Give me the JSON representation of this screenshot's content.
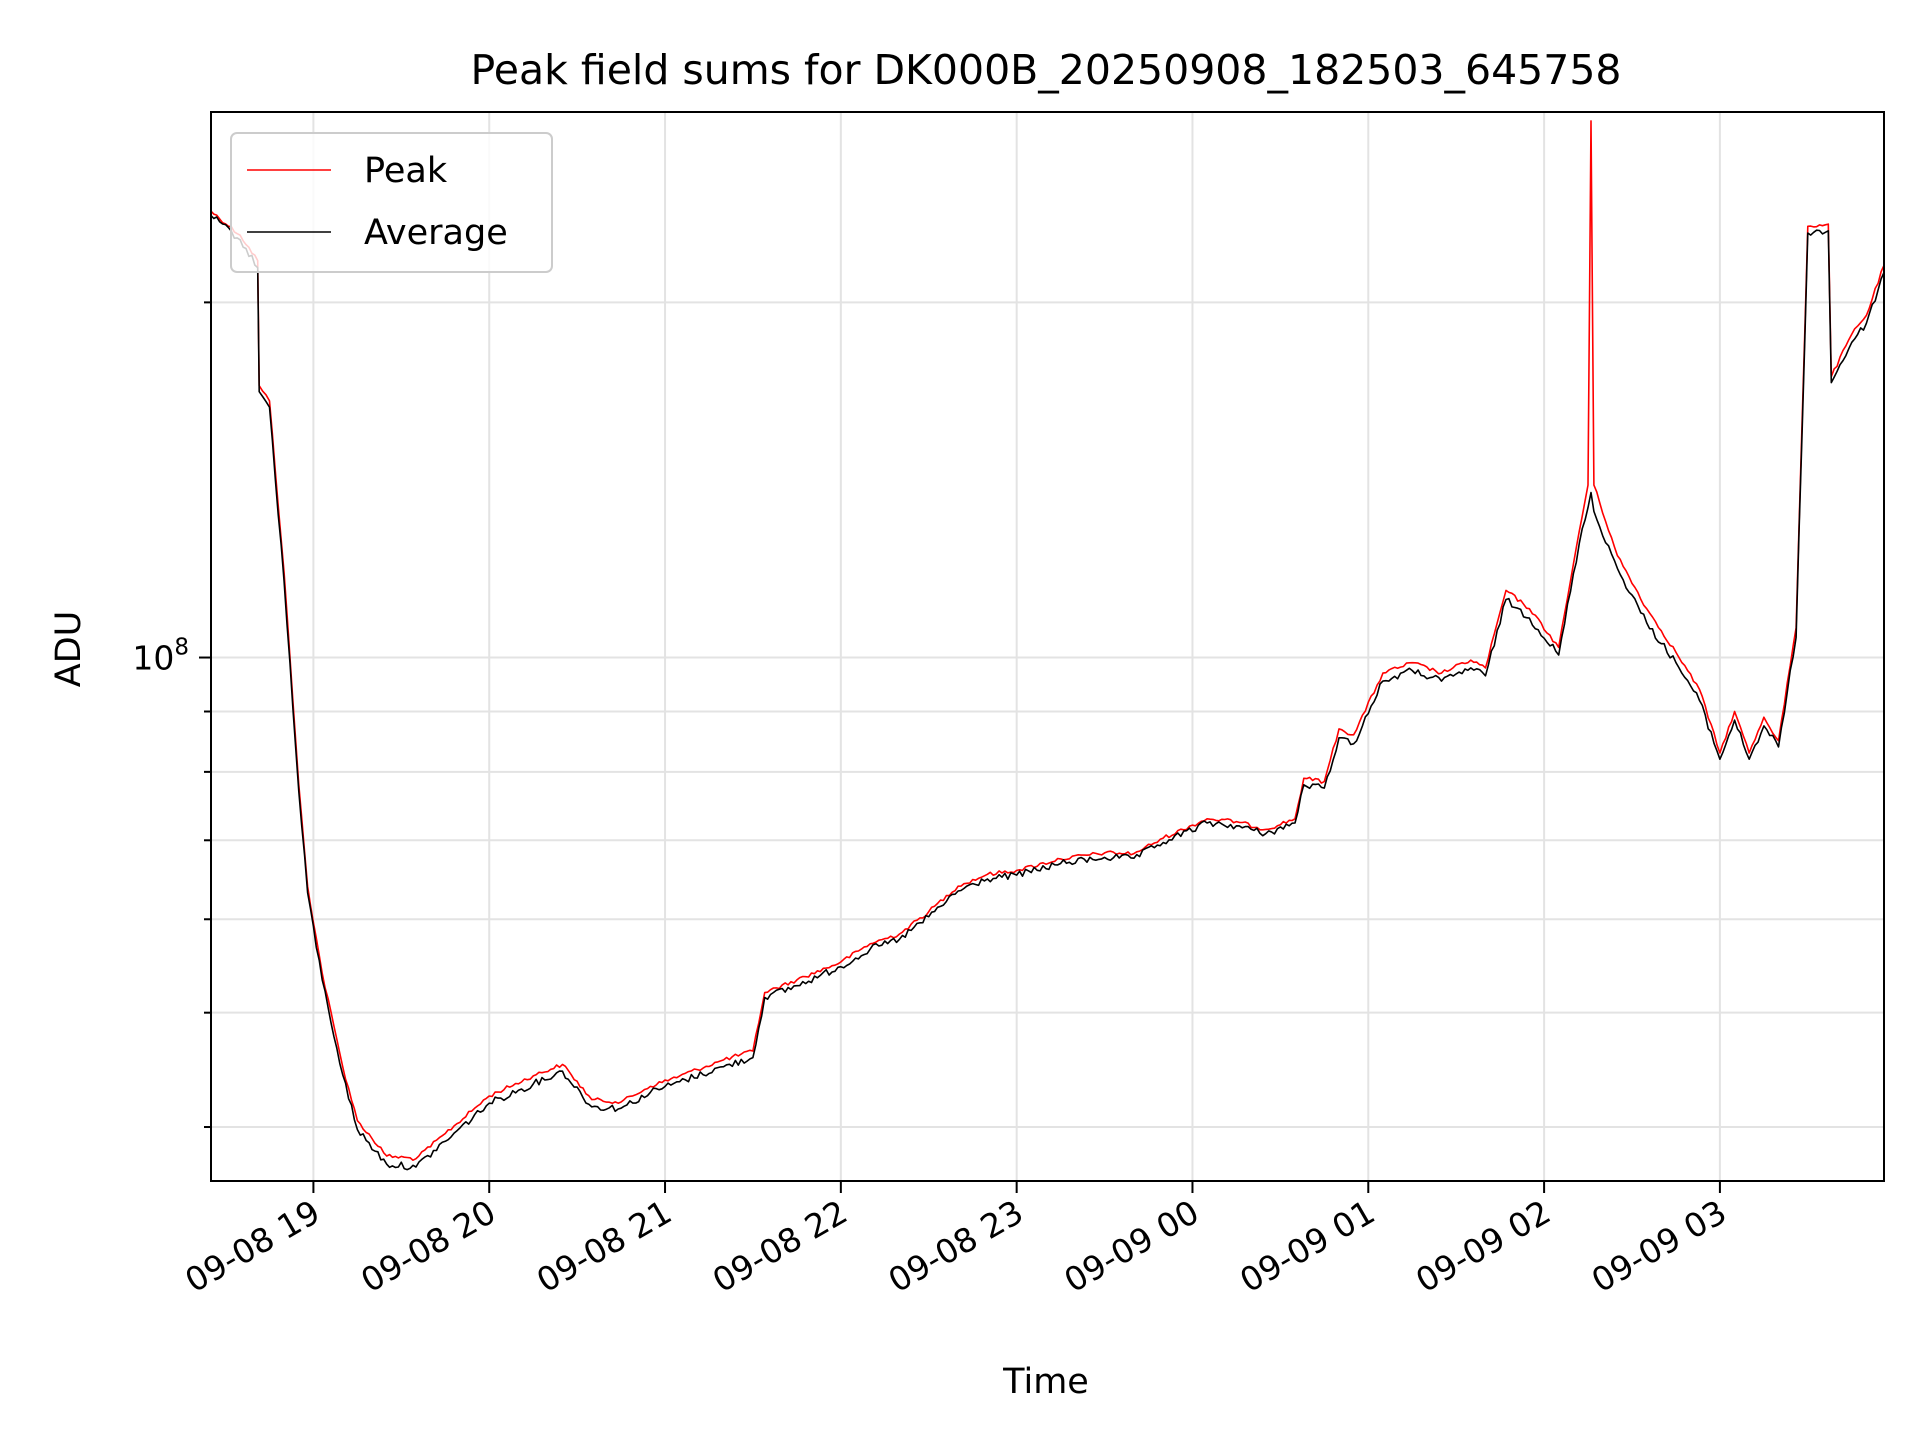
{
  "chart_data": {
    "type": "line",
    "title": "Peak field sums for DK000B_20250908_182503_645758",
    "xlabel": "Time",
    "ylabel": "ADU",
    "y_scale": "log",
    "y_tick_label": {
      "base": "10",
      "exponent": "8",
      "value": 100000000
    },
    "xlim": [
      "2025-09-08 18:25:03",
      "2025-09-09 03:56:00"
    ],
    "ylim": [
      36000000,
      290000000
    ],
    "x_ticks": [
      {
        "label": "09-08 19",
        "time": "2025-09-08 19:00"
      },
      {
        "label": "09-08 20",
        "time": "2025-09-08 20:00"
      },
      {
        "label": "09-08 21",
        "time": "2025-09-08 21:00"
      },
      {
        "label": "09-08 22",
        "time": "2025-09-08 22:00"
      },
      {
        "label": "09-08 23",
        "time": "2025-09-08 23:00"
      },
      {
        "label": "09-09 00",
        "time": "2025-09-09 00:00"
      },
      {
        "label": "09-09 01",
        "time": "2025-09-09 01:00"
      },
      {
        "label": "09-09 02",
        "time": "2025-09-09 02:00"
      },
      {
        "label": "09-09 03",
        "time": "2025-09-09 03:00"
      }
    ],
    "grid": true,
    "legend_position": "top-left",
    "series": [
      {
        "name": "Peak",
        "color": "#ff0000",
        "points": [
          [
            "2025-09-08 18:25",
            239000000
          ],
          [
            "2025-09-08 18:35",
            228000000
          ],
          [
            "2025-09-08 18:41",
            217000000
          ],
          [
            "2025-09-08 18:41:30",
            170000000
          ],
          [
            "2025-09-08 18:45",
            165000000
          ],
          [
            "2025-09-08 18:50",
            118000000
          ],
          [
            "2025-09-08 18:55",
            78000000
          ],
          [
            "2025-09-08 18:58",
            64000000
          ],
          [
            "2025-09-08 19:03",
            54000000
          ],
          [
            "2025-09-08 19:10",
            45000000
          ],
          [
            "2025-09-08 19:15",
            40500000
          ],
          [
            "2025-09-08 19:25",
            37800000
          ],
          [
            "2025-09-08 19:35",
            37600000
          ],
          [
            "2025-09-08 19:45",
            39500000
          ],
          [
            "2025-09-08 20:00",
            42500000
          ],
          [
            "2025-09-08 20:15",
            44200000
          ],
          [
            "2025-09-08 20:25",
            45200000
          ],
          [
            "2025-09-08 20:35",
            42200000
          ],
          [
            "2025-09-08 20:45",
            42000000
          ],
          [
            "2025-09-08 20:55",
            43300000
          ],
          [
            "2025-09-08 21:05",
            44200000
          ],
          [
            "2025-09-08 21:20",
            45600000
          ],
          [
            "2025-09-08 21:30",
            46400000
          ],
          [
            "2025-09-08 21:34",
            52000000
          ],
          [
            "2025-09-08 21:45",
            53300000
          ],
          [
            "2025-09-08 22:00",
            55200000
          ],
          [
            "2025-09-08 22:10",
            57200000
          ],
          [
            "2025-09-08 22:20",
            58300000
          ],
          [
            "2025-09-08 22:30",
            60900000
          ],
          [
            "2025-09-08 22:40",
            64000000
          ],
          [
            "2025-09-08 22:50",
            65500000
          ],
          [
            "2025-09-08 23:00",
            66000000
          ],
          [
            "2025-09-08 23:15",
            67500000
          ],
          [
            "2025-09-08 23:30",
            68300000
          ],
          [
            "2025-09-08 23:40",
            68200000
          ],
          [
            "2025-09-08 23:50",
            70300000
          ],
          [
            "2025-09-09 00:05",
            73000000
          ],
          [
            "2025-09-09 00:15",
            72600000
          ],
          [
            "2025-09-09 00:25",
            71500000
          ],
          [
            "2025-09-09 00:35",
            73000000
          ],
          [
            "2025-09-09 00:38",
            79000000
          ],
          [
            "2025-09-09 00:45",
            78500000
          ],
          [
            "2025-09-09 00:50",
            87000000
          ],
          [
            "2025-09-09 00:55",
            86000000
          ],
          [
            "2025-09-09 01:05",
            97000000
          ],
          [
            "2025-09-09 01:15",
            99000000
          ],
          [
            "2025-09-09 01:25",
            97000000
          ],
          [
            "2025-09-09 01:35",
            99500000
          ],
          [
            "2025-09-09 01:40",
            98000000
          ],
          [
            "2025-09-09 01:47",
            114000000
          ],
          [
            "2025-09-09 01:55",
            110000000
          ],
          [
            "2025-09-09 02:05",
            102000000
          ],
          [
            "2025-09-09 02:12",
            128000000
          ],
          [
            "2025-09-09 02:15",
            140000000
          ],
          [
            "2025-09-09 02:16",
            285000000
          ],
          [
            "2025-09-09 02:17",
            140000000
          ],
          [
            "2025-09-09 02:25",
            122000000
          ],
          [
            "2025-09-09 02:35",
            110000000
          ],
          [
            "2025-09-09 02:45",
            101000000
          ],
          [
            "2025-09-09 02:53",
            94000000
          ],
          [
            "2025-09-09 03:00",
            83000000
          ],
          [
            "2025-09-09 03:05",
            90000000
          ],
          [
            "2025-09-09 03:10",
            83000000
          ],
          [
            "2025-09-09 03:15",
            89000000
          ],
          [
            "2025-09-09 03:20",
            85000000
          ],
          [
            "2025-09-09 03:26",
            106000000
          ],
          [
            "2025-09-09 03:30",
            232000000
          ],
          [
            "2025-09-09 03:37",
            233000000
          ],
          [
            "2025-09-09 03:38",
            173000000
          ],
          [
            "2025-09-09 03:45",
            188000000
          ],
          [
            "2025-09-09 03:50",
            195000000
          ],
          [
            "2025-09-09 03:56",
            215000000
          ]
        ]
      },
      {
        "name": "Average",
        "color": "#000000",
        "points": [
          [
            "2025-09-08 18:25",
            237000000
          ],
          [
            "2025-09-08 18:35",
            226000000
          ],
          [
            "2025-09-08 18:41",
            214000000
          ],
          [
            "2025-09-08 18:41:30",
            168000000
          ],
          [
            "2025-09-08 18:45",
            163000000
          ],
          [
            "2025-09-08 18:50",
            116000000
          ],
          [
            "2025-09-08 18:55",
            77000000
          ],
          [
            "2025-09-08 18:58",
            63200000
          ],
          [
            "2025-09-08 19:03",
            53300000
          ],
          [
            "2025-09-08 19:10",
            44300000
          ],
          [
            "2025-09-08 19:15",
            39800000
          ],
          [
            "2025-09-08 19:25",
            37200000
          ],
          [
            "2025-09-08 19:35",
            37000000
          ],
          [
            "2025-09-08 19:45",
            38900000
          ],
          [
            "2025-09-08 20:00",
            41900000
          ],
          [
            "2025-09-08 20:15",
            43500000
          ],
          [
            "2025-09-08 20:25",
            44600000
          ],
          [
            "2025-09-08 20:35",
            41600000
          ],
          [
            "2025-09-08 20:45",
            41500000
          ],
          [
            "2025-09-08 20:55",
            42800000
          ],
          [
            "2025-09-08 21:05",
            43700000
          ],
          [
            "2025-09-08 21:20",
            45000000
          ],
          [
            "2025-09-08 21:30",
            45800000
          ],
          [
            "2025-09-08 21:34",
            51500000
          ],
          [
            "2025-09-08 21:45",
            52700000
          ],
          [
            "2025-09-08 22:00",
            54700000
          ],
          [
            "2025-09-08 22:10",
            56600000
          ],
          [
            "2025-09-08 22:20",
            57700000
          ],
          [
            "2025-09-08 22:30",
            60300000
          ],
          [
            "2025-09-08 22:40",
            63400000
          ],
          [
            "2025-09-08 22:50",
            64900000
          ],
          [
            "2025-09-08 23:00",
            65400000
          ],
          [
            "2025-09-08 23:15",
            66900000
          ],
          [
            "2025-09-08 23:30",
            67700000
          ],
          [
            "2025-09-08 23:40",
            67600000
          ],
          [
            "2025-09-08 23:50",
            69700000
          ],
          [
            "2025-09-09 00:05",
            72400000
          ],
          [
            "2025-09-09 00:15",
            72000000
          ],
          [
            "2025-09-09 00:25",
            70900000
          ],
          [
            "2025-09-09 00:35",
            72400000
          ],
          [
            "2025-09-09 00:38",
            78000000
          ],
          [
            "2025-09-09 00:45",
            77500000
          ],
          [
            "2025-09-09 00:50",
            85500000
          ],
          [
            "2025-09-09 00:55",
            84500000
          ],
          [
            "2025-09-09 01:05",
            95500000
          ],
          [
            "2025-09-09 01:15",
            97500000
          ],
          [
            "2025-09-09 01:25",
            95500000
          ],
          [
            "2025-09-09 01:35",
            98000000
          ],
          [
            "2025-09-09 01:40",
            96500000
          ],
          [
            "2025-09-09 01:47",
            112000000
          ],
          [
            "2025-09-09 01:55",
            108000000
          ],
          [
            "2025-09-09 02:05",
            100500000
          ],
          [
            "2025-09-09 02:12",
            125000000
          ],
          [
            "2025-09-09 02:15",
            134000000
          ],
          [
            "2025-09-09 02:16",
            138000000
          ],
          [
            "2025-09-09 02:17",
            133000000
          ],
          [
            "2025-09-09 02:25",
            119000000
          ],
          [
            "2025-09-09 02:35",
            107000000
          ],
          [
            "2025-09-09 02:45",
            99000000
          ],
          [
            "2025-09-09 02:53",
            92000000
          ],
          [
            "2025-09-09 03:00",
            82000000
          ],
          [
            "2025-09-09 03:05",
            88500000
          ],
          [
            "2025-09-09 03:10",
            82000000
          ],
          [
            "2025-09-09 03:15",
            87500000
          ],
          [
            "2025-09-09 03:20",
            84000000
          ],
          [
            "2025-09-09 03:26",
            104000000
          ],
          [
            "2025-09-09 03:30",
            229000000
          ],
          [
            "2025-09-09 03:37",
            230000000
          ],
          [
            "2025-09-09 03:38",
            171000000
          ],
          [
            "2025-09-09 03:45",
            185000000
          ],
          [
            "2025-09-09 03:50",
            192000000
          ],
          [
            "2025-09-09 03:56",
            212000000
          ]
        ]
      }
    ]
  }
}
